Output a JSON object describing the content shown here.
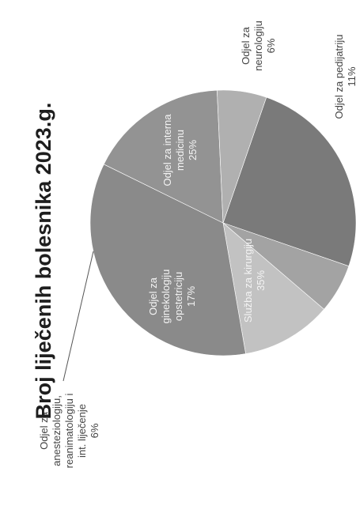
{
  "chart_data": {
    "type": "pie",
    "title": "Broj liječenih bolesnika 2023.g.",
    "slices": [
      {
        "name": "Odjel za interna medicinu",
        "label": [
          "Odjel za interna",
          "medicinu"
        ],
        "pct_label": "25%",
        "value": 25,
        "color": "#7a7a7a",
        "label_pos": "inside"
      },
      {
        "name": "Odjel za neurologiju",
        "label": [
          "Odjel za",
          "neurologiju"
        ],
        "pct_label": "6%",
        "value": 6,
        "color": "#a3a3a3",
        "label_pos": "outside"
      },
      {
        "name": "Odjel za pedijatriju",
        "label": [
          "Odjel za pedijatriju"
        ],
        "pct_label": "11%",
        "value": 11,
        "color": "#c2c2c2",
        "label_pos": "outside"
      },
      {
        "name": "Služba za kirurgiju",
        "label": [
          "Služba za kirurgiju"
        ],
        "pct_label": "35%",
        "value": 35,
        "color": "#8a8a8a",
        "label_pos": "inside"
      },
      {
        "name": "Odjel za ginekologiju opstetriciju",
        "label": [
          "Odjel za",
          "ginekologiju",
          "opstetriciju"
        ],
        "pct_label": "17%",
        "value": 17,
        "color": "#939393",
        "label_pos": "inside"
      },
      {
        "name": "Odjel za anesteziologiju, reanimatologiju i int. liječenje",
        "label": [
          "Odjel za",
          "anesteziologiju,",
          "reanimatologiju i",
          "int. liječenje"
        ],
        "pct_label": "6%",
        "value": 6,
        "color": "#b0b0b0",
        "label_pos": "outside"
      }
    ],
    "legend": "none"
  }
}
